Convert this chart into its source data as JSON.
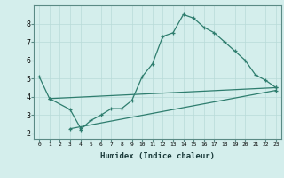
{
  "line1_x": [
    0,
    1,
    3,
    4,
    4,
    5,
    6,
    7,
    8,
    9,
    10,
    11,
    12,
    13,
    14,
    15,
    16,
    17,
    18,
    19,
    20,
    21,
    22,
    23
  ],
  "line1_y": [
    5.1,
    3.9,
    3.3,
    2.3,
    2.2,
    2.7,
    3.0,
    3.35,
    3.35,
    3.8,
    5.1,
    5.8,
    7.3,
    7.5,
    8.5,
    8.3,
    7.8,
    7.5,
    7.0,
    6.5,
    6.0,
    5.2,
    4.9,
    4.5
  ],
  "line2_x": [
    1,
    23
  ],
  "line2_y": [
    3.9,
    4.5
  ],
  "line3_x": [
    3,
    23
  ],
  "line3_y": [
    2.25,
    4.35
  ],
  "color": "#2e7d6e",
  "bg_color": "#d4eeec",
  "grid_color": "#b8dbd8",
  "xlabel": "Humidex (Indice chaleur)",
  "xticks": [
    0,
    1,
    2,
    3,
    4,
    5,
    6,
    7,
    8,
    9,
    10,
    11,
    12,
    13,
    14,
    15,
    16,
    17,
    18,
    19,
    20,
    21,
    22,
    23
  ],
  "yticks": [
    2,
    3,
    4,
    5,
    6,
    7,
    8
  ],
  "ylim": [
    1.7,
    9.0
  ],
  "xlim": [
    -0.5,
    23.5
  ]
}
